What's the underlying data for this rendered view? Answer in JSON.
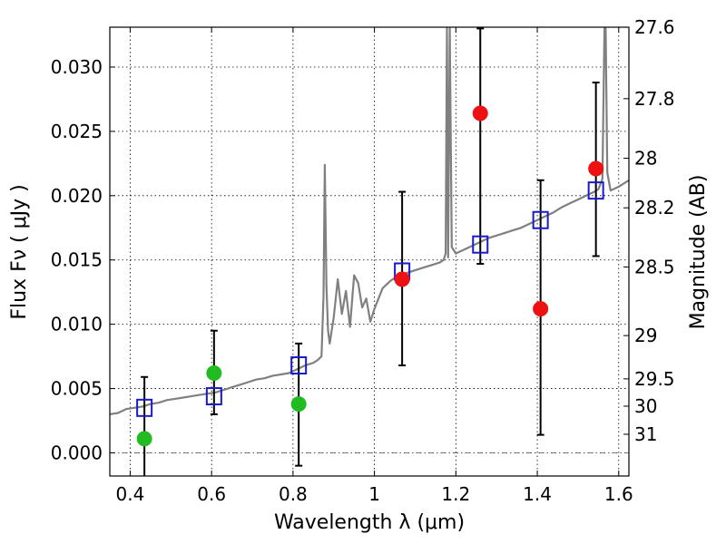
{
  "chart_data": {
    "type": "scatter",
    "title": "",
    "xlabel": "Wavelength  λ (μm)",
    "ylabel": "Flux  Fν  ( μJy )",
    "y2label": "Magnitude (AB)",
    "xlim": [
      0.35,
      1.625
    ],
    "ylim": [
      -0.0018,
      0.0331
    ],
    "grid": true,
    "xticks": [
      {
        "v": 0.4,
        "label": "0.4"
      },
      {
        "v": 0.6,
        "label": "0.6"
      },
      {
        "v": 0.8,
        "label": "0.8"
      },
      {
        "v": 1.0,
        "label": "1"
      },
      {
        "v": 1.2,
        "label": "1.2"
      },
      {
        "v": 1.4,
        "label": "1.4"
      },
      {
        "v": 1.6,
        "label": "1.6"
      }
    ],
    "yticks": [
      {
        "v": 0.0,
        "label": "0.000"
      },
      {
        "v": 0.005,
        "label": "0.005"
      },
      {
        "v": 0.01,
        "label": "0.010"
      },
      {
        "v": 0.015,
        "label": "0.015"
      },
      {
        "v": 0.02,
        "label": "0.020"
      },
      {
        "v": 0.025,
        "label": "0.025"
      },
      {
        "v": 0.03,
        "label": "0.030"
      }
    ],
    "magticks": [
      {
        "mag": 27.6,
        "label": "27.6"
      },
      {
        "mag": 27.8,
        "label": "27.8"
      },
      {
        "mag": 28.0,
        "label": "28"
      },
      {
        "mag": 28.2,
        "label": "28.2"
      },
      {
        "mag": 28.5,
        "label": "28.5"
      },
      {
        "mag": 29.0,
        "label": "29"
      },
      {
        "mag": 29.5,
        "label": "29.5"
      },
      {
        "mag": 30.0,
        "label": "30"
      },
      {
        "mag": 31.0,
        "label": "31"
      }
    ],
    "colors": {
      "green": "#22bb22",
      "red": "#ee1111",
      "model_box": "#1a1acc",
      "spectrum": "#808080",
      "errorbar": "#000000",
      "zeroline": "#555555"
    },
    "series": [
      {
        "kind": "measured-green",
        "points": [
          {
            "x": 0.435,
            "y": 0.0011,
            "err_lo": 0.0055,
            "err_hi": 0.0048
          },
          {
            "x": 0.606,
            "y": 0.0062,
            "err_lo": 0.0032,
            "err_hi": 0.0033
          },
          {
            "x": 0.814,
            "y": 0.0038,
            "err_lo": 0.0048,
            "err_hi": 0.0047
          }
        ]
      },
      {
        "kind": "measured-red",
        "points": [
          {
            "x": 1.068,
            "y": 0.0135,
            "err_lo": 0.0067,
            "err_hi": 0.0068
          },
          {
            "x": 1.26,
            "y": 0.0264,
            "err_lo": 0.0117,
            "err_hi": 0.0066
          },
          {
            "x": 1.408,
            "y": 0.0112,
            "err_lo": 0.0098,
            "err_hi": 0.01
          },
          {
            "x": 1.544,
            "y": 0.0221,
            "err_lo": 0.0068,
            "err_hi": 0.0067
          }
        ]
      },
      {
        "kind": "model-photometry",
        "points": [
          {
            "x": 0.435,
            "y": 0.0035
          },
          {
            "x": 0.606,
            "y": 0.0044
          },
          {
            "x": 0.814,
            "y": 0.0068
          },
          {
            "x": 1.068,
            "y": 0.0141
          },
          {
            "x": 1.26,
            "y": 0.0162
          },
          {
            "x": 1.408,
            "y": 0.0181
          },
          {
            "x": 1.544,
            "y": 0.0204
          }
        ]
      },
      {
        "kind": "model-spectrum",
        "x": [
          0.35,
          0.37,
          0.39,
          0.41,
          0.43,
          0.45,
          0.47,
          0.49,
          0.51,
          0.53,
          0.55,
          0.57,
          0.59,
          0.61,
          0.63,
          0.65,
          0.67,
          0.69,
          0.71,
          0.73,
          0.75,
          0.77,
          0.79,
          0.81,
          0.83,
          0.85,
          0.86,
          0.87,
          0.875,
          0.878,
          0.882,
          0.886,
          0.89,
          0.9,
          0.91,
          0.92,
          0.93,
          0.94,
          0.95,
          0.96,
          0.97,
          0.98,
          0.99,
          1.0,
          1.02,
          1.04,
          1.06,
          1.08,
          1.1,
          1.12,
          1.14,
          1.16,
          1.17,
          1.175,
          1.178,
          1.181,
          1.185,
          1.19,
          1.2,
          1.22,
          1.24,
          1.26,
          1.28,
          1.3,
          1.32,
          1.34,
          1.36,
          1.38,
          1.4,
          1.42,
          1.44,
          1.46,
          1.48,
          1.5,
          1.52,
          1.54,
          1.55,
          1.56,
          1.565,
          1.568,
          1.572,
          1.58,
          1.6,
          1.625
        ],
        "y": [
          0.003,
          0.0031,
          0.0034,
          0.0035,
          0.0036,
          0.0038,
          0.0039,
          0.0041,
          0.0042,
          0.0043,
          0.0044,
          0.0045,
          0.0046,
          0.0047,
          0.0049,
          0.0051,
          0.0053,
          0.0055,
          0.0057,
          0.0058,
          0.006,
          0.0061,
          0.0062,
          0.0065,
          0.0068,
          0.007,
          0.0072,
          0.0075,
          0.0122,
          0.0224,
          0.013,
          0.0095,
          0.0085,
          0.0105,
          0.0135,
          0.0108,
          0.0126,
          0.0098,
          0.0138,
          0.0132,
          0.0113,
          0.012,
          0.0102,
          0.0112,
          0.0128,
          0.0134,
          0.0138,
          0.014,
          0.0142,
          0.0144,
          0.0146,
          0.0148,
          0.015,
          0.0155,
          0.033,
          0.0152,
          0.033,
          0.016,
          0.0155,
          0.0158,
          0.0161,
          0.0164,
          0.0167,
          0.0169,
          0.0171,
          0.0173,
          0.0175,
          0.0178,
          0.0181,
          0.0184,
          0.0187,
          0.0191,
          0.0194,
          0.0197,
          0.02,
          0.0203,
          0.0205,
          0.0213,
          0.033,
          0.033,
          0.0218,
          0.0204,
          0.0207,
          0.0212
        ]
      }
    ]
  }
}
